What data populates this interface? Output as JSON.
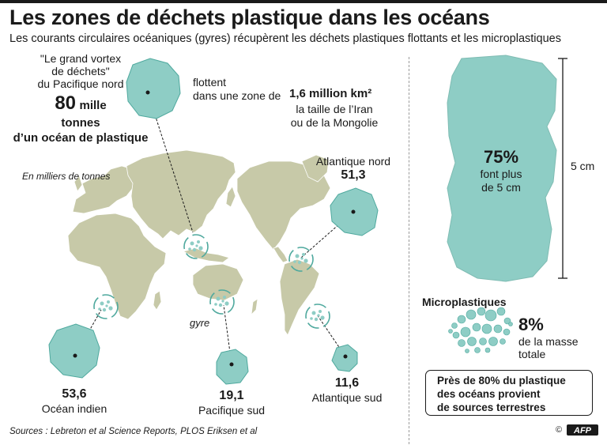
{
  "header": {
    "title": "Les zones de déchets plastique dans les océans",
    "subtitle": "Les courants circulaires océaniques  (gyres) récupèrent les déchets plastiques flottants et les microplastiques"
  },
  "vortex": {
    "quote_line1": "\"Le grand vortex",
    "quote_line2": "de déchets\"",
    "quote_line3": "du Pacifique nord",
    "amount_value": "80",
    "amount_unit": "mille",
    "amount_line2": "tonnes",
    "amount_line3": "d’un océan de plastique",
    "float_line1": "flottent",
    "float_line2": "dans une zone de",
    "area_value": "1,6 million km²",
    "compare_line1": "la taille de l’Iran",
    "compare_line2": "ou de la Mongolie"
  },
  "map_note": "En milliers de tonnes",
  "gyre_label": "gyre",
  "regions": {
    "atlantique_nord": {
      "name": "Atlantique nord",
      "value": "51,3"
    },
    "ocean_indien": {
      "name": "Océan indien",
      "value": "53,6"
    },
    "pacifique_sud": {
      "name": "Pacifique sud",
      "value": "19,1"
    },
    "atlantique_sud": {
      "name": "Atlantique sud",
      "value": "11,6"
    }
  },
  "size_panel": {
    "percent": "75%",
    "line1": "font plus",
    "line2": "de 5 cm",
    "scale_label": "5 cm"
  },
  "micro": {
    "title": "Microplastiques",
    "percent": "8%",
    "line1": "de la masse",
    "line2": "totale"
  },
  "callout": {
    "line1": "Près de 80% du plastique",
    "line2": "des océans provient",
    "line3": "de sources terrestres"
  },
  "footer": {
    "sources": "Sources : Lebreton et al Science Reports, PLOS Eriksen et al",
    "credit": "© AFP"
  },
  "colors": {
    "teal": "#8ecdc5",
    "teal_dark": "#4fa99e",
    "land": "#c7c9a8",
    "text": "#1a1a1a"
  }
}
